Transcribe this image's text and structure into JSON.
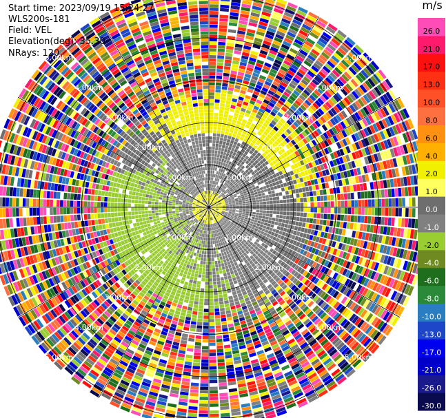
{
  "info": {
    "start_time": "Start time: 2023/09/19 15:24:27",
    "station": "WLS200s-181",
    "field": "Field: VEL",
    "elevation": "Elevation(deg): 35.30",
    "nrays": "NRays: 120"
  },
  "colorbar": {
    "unit": "m/s",
    "colors": [
      "#0a0a4e",
      "#1a1a8c",
      "#0000c8",
      "#0000f0",
      "#1e46c8",
      "#2a7dc0",
      "#2a8a3a",
      "#1e6e1e",
      "#6e8a20",
      "#9acd32",
      "#808080",
      "#6e6e6e",
      "#ffff60",
      "#f0f000",
      "#ffb000",
      "#ff9010",
      "#ff7040",
      "#ff5028",
      "#ff3014",
      "#ff1010",
      "#ff1a6e",
      "#ff4db8"
    ],
    "labels": [
      "-30.0",
      "-26.0",
      "-21.0",
      "-17.0",
      "-13.0",
      "-10.0",
      "-8.0",
      "-6.0",
      "-4.0",
      "-2.0",
      "-1.0",
      "0.0",
      "1.0",
      "2.0",
      "4.0",
      "6.0",
      "8.0",
      "10.0",
      "13.0",
      "17.0",
      "21.0",
      "26.0"
    ]
  },
  "chart_data": {
    "type": "heatmap",
    "subtype": "polar-ppi",
    "field": "VEL",
    "units": "m/s",
    "elevation_deg": 35.3,
    "n_rays": 120,
    "range_rings_km": [
      1.0,
      2.0,
      3.0,
      4.0,
      5.0
    ],
    "range_labels": [
      "1.00km",
      "2.00km",
      "3.00km",
      "4.00km",
      "5.00km"
    ],
    "spoke_angles_deg": [
      0,
      30,
      60,
      90,
      120,
      150,
      180,
      210,
      240,
      270,
      300,
      330
    ],
    "colormap": "velocity",
    "vmin": -30.0,
    "vmax": 26.0,
    "near_field_km": [
      0.0,
      2.4
    ],
    "near_field_values": "mostly -1.0 to 2.0 m/s (gray/yellow/green)",
    "far_field": "noisy full-range values beyond ~2.6 km"
  }
}
